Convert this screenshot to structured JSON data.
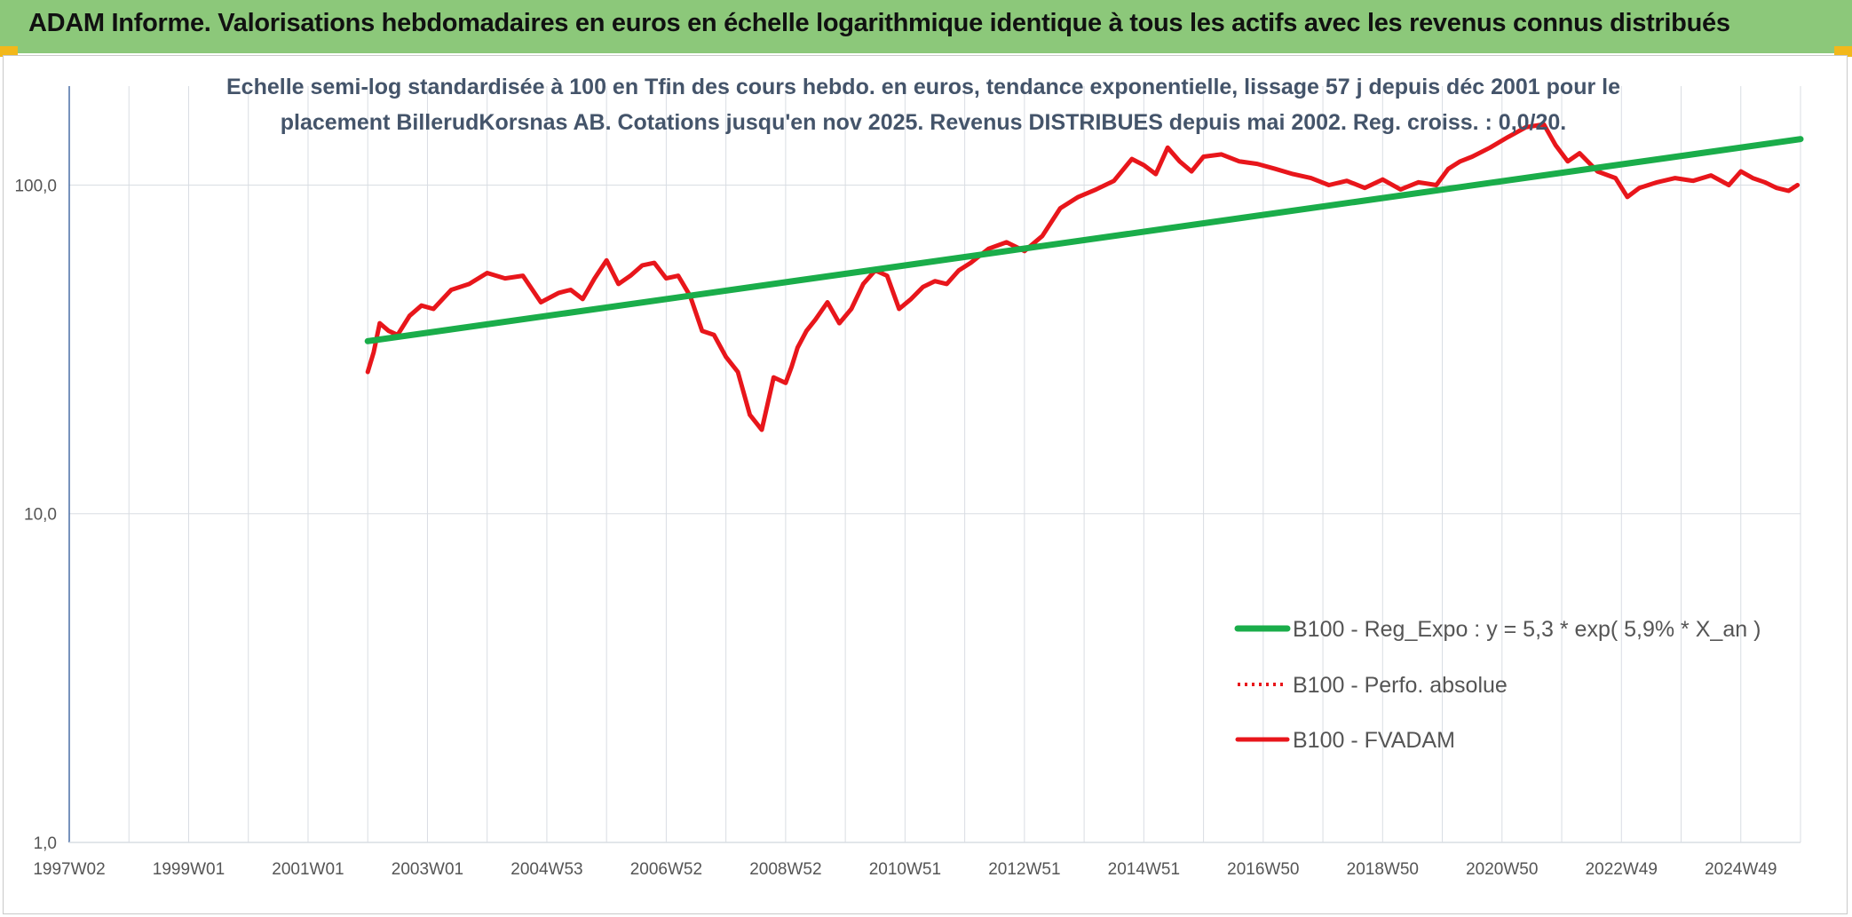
{
  "header": {
    "title": "ADAM Informe. Valorisations hebdomadaires en euros en échelle logarithmique identique à tous les actifs avec les revenus connus distribués"
  },
  "colors": {
    "banner": "#8cc87a",
    "corner": "#f2b81b",
    "trend": "#1aad4a",
    "fvadam": "#e8161b",
    "perfo": "#e8161b",
    "grid": "#d9dde3",
    "axis": "#4a6fa5"
  },
  "chart_data": {
    "type": "line",
    "title_lines": [
      "Echelle semi-log standardisée à 100 en Tfin des cours hebdo. en euros, tendance exponentielle, lissage 57 j depuis déc 2001 pour le",
      "placement BillerudKorsnas AB. Cotations jusqu'en nov 2025. Revenus DISTRIBUES depuis mai 2002. Reg. croiss. : 0,0/20."
    ],
    "y_scale": "log",
    "ylim": [
      1,
      200
    ],
    "y_ticks": [
      {
        "value": 1,
        "label": "1,0"
      },
      {
        "value": 10,
        "label": "10,0"
      },
      {
        "value": 100,
        "label": "100,0"
      }
    ],
    "x_ticks": [
      "1997W02",
      "1999W01",
      "2001W01",
      "2003W01",
      "2004W53",
      "2006W52",
      "2008W52",
      "2010W51",
      "2012W51",
      "2014W51",
      "2016W50",
      "2018W50",
      "2020W50",
      "2022W49",
      "2024W49"
    ],
    "x_tick_years": [
      1997.0,
      1999.0,
      2001.0,
      2003.0,
      2005.0,
      2007.0,
      2009.0,
      2011.0,
      2013.0,
      2015.0,
      2017.0,
      2019.0,
      2021.0,
      2023.0,
      2025.0
    ],
    "xlim": [
      1997.0,
      2026.0
    ],
    "series": [
      {
        "name": "B100 - FVADAM",
        "style": "solid",
        "color": "#e8161b",
        "x": [
          2002.0,
          2002.1,
          2002.2,
          2002.35,
          2002.5,
          2002.7,
          2002.9,
          2003.1,
          2003.4,
          2003.7,
          2004.0,
          2004.3,
          2004.6,
          2004.9,
          2005.2,
          2005.4,
          2005.6,
          2005.8,
          2006.0,
          2006.2,
          2006.4,
          2006.6,
          2006.8,
          2007.0,
          2007.2,
          2007.4,
          2007.6,
          2007.8,
          2008.0,
          2008.2,
          2008.4,
          2008.6,
          2008.8,
          2009.0,
          2009.1,
          2009.2,
          2009.35,
          2009.5,
          2009.7,
          2009.9,
          2010.1,
          2010.3,
          2010.5,
          2010.7,
          2010.9,
          2011.1,
          2011.3,
          2011.5,
          2011.7,
          2011.9,
          2012.1,
          2012.4,
          2012.7,
          2013.0,
          2013.3,
          2013.6,
          2013.9,
          2014.2,
          2014.5,
          2014.8,
          2015.0,
          2015.2,
          2015.4,
          2015.6,
          2015.8,
          2016.0,
          2016.3,
          2016.6,
          2016.9,
          2017.2,
          2017.5,
          2017.8,
          2018.1,
          2018.4,
          2018.7,
          2019.0,
          2019.3,
          2019.6,
          2019.9,
          2020.1,
          2020.3,
          2020.5,
          2020.8,
          2021.1,
          2021.4,
          2021.7,
          2021.9,
          2022.1,
          2022.3,
          2022.6,
          2022.9,
          2023.1,
          2023.3,
          2023.6,
          2023.9,
          2024.2,
          2024.5,
          2024.8,
          2025.0,
          2025.2,
          2025.4,
          2025.6,
          2025.8,
          2025.95
        ],
        "values": [
          27,
          31,
          38,
          36,
          35,
          40,
          43,
          42,
          48,
          50,
          54,
          52,
          53,
          44,
          47,
          48,
          45,
          52,
          59,
          50,
          53,
          57,
          58,
          52,
          53,
          46,
          36,
          35,
          30,
          27,
          20,
          18,
          26,
          25,
          28,
          32,
          36,
          39,
          44,
          38,
          42,
          50,
          55,
          53,
          42,
          45,
          49,
          51,
          50,
          55,
          58,
          64,
          67,
          63,
          70,
          85,
          92,
          97,
          103,
          120,
          115,
          108,
          130,
          118,
          110,
          122,
          124,
          118,
          116,
          112,
          108,
          105,
          100,
          103,
          98,
          104,
          97,
          102,
          100,
          112,
          118,
          122,
          130,
          140,
          150,
          153,
          132,
          118,
          125,
          110,
          105,
          92,
          98,
          102,
          105,
          103,
          107,
          100,
          110,
          105,
          102,
          98,
          96,
          100
        ]
      },
      {
        "name": "B100 - Perfo. absolue",
        "style": "dotted",
        "color": "#e8161b",
        "x": [],
        "values": []
      },
      {
        "name": "B100 - Reg_Expo : y = 5,3 * exp( 5,9% *  X_an )",
        "style": "thick",
        "color": "#1aad4a",
        "x": [
          2002.0,
          2026.0
        ],
        "values": [
          33.5,
          138
        ]
      }
    ],
    "legend": {
      "position": "bottom-right",
      "items": [
        {
          "label": "B100 - Reg_Expo : y = 5,3 * exp( 5,9% *  X_an )",
          "style": "thick",
          "color": "#1aad4a"
        },
        {
          "label": "B100 - Perfo. absolue",
          "style": "dotted",
          "color": "#e8161b"
        },
        {
          "label": "B100 - FVADAM",
          "style": "solid",
          "color": "#e8161b"
        }
      ]
    },
    "grid": true
  }
}
